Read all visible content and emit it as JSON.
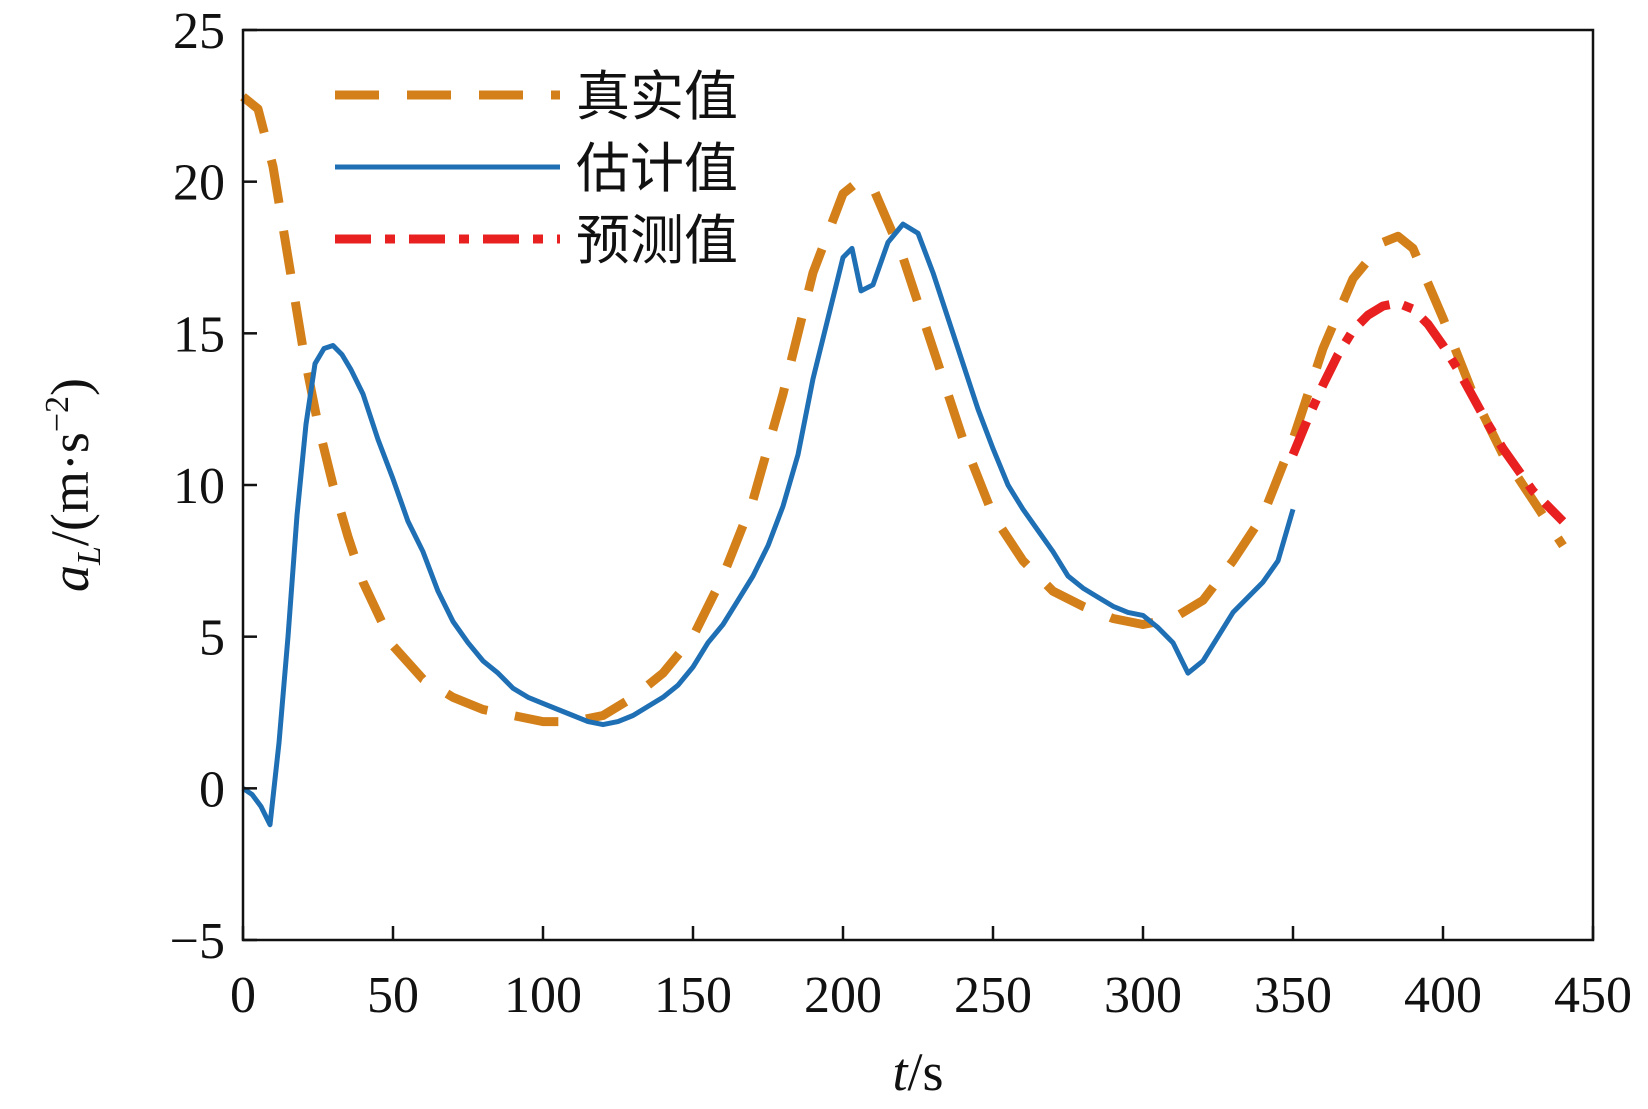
{
  "chart_data": {
    "type": "line",
    "xlabel": {
      "var": "t",
      "unit": "/s"
    },
    "ylabel": {
      "var": "a",
      "sub": "L",
      "unit_prefix": "/(m·s",
      "unit_sup": "−2",
      "unit_suffix": ")"
    },
    "xlim": [
      0,
      450
    ],
    "ylim": [
      -5,
      25
    ],
    "xticks": [
      0,
      50,
      100,
      150,
      200,
      250,
      300,
      350,
      400,
      450
    ],
    "yticks": [
      -5,
      0,
      5,
      10,
      15,
      20,
      25
    ],
    "xtick_labels": [
      "0",
      "50",
      "100",
      "150",
      "200",
      "250",
      "300",
      "350",
      "400",
      "450"
    ],
    "ytick_labels": [
      "−5",
      "0",
      "5",
      "10",
      "15",
      "20",
      "25"
    ],
    "grid": false,
    "legend_position": "top-left",
    "series": [
      {
        "name": "真实值",
        "color": "#D4801A",
        "style": "dashed",
        "x": [
          0,
          5,
          10,
          15,
          20,
          25,
          30,
          35,
          40,
          50,
          60,
          70,
          80,
          90,
          100,
          110,
          120,
          130,
          140,
          150,
          160,
          170,
          180,
          190,
          200,
          205,
          210,
          220,
          230,
          240,
          250,
          260,
          270,
          280,
          290,
          300,
          310,
          320,
          330,
          340,
          350,
          360,
          370,
          380,
          385,
          390,
          400,
          410,
          420,
          430,
          440
        ],
        "values": [
          22.8,
          22.4,
          20.5,
          17.5,
          14.5,
          12.0,
          10.0,
          8.3,
          6.8,
          4.7,
          3.6,
          3.0,
          2.6,
          2.4,
          2.2,
          2.2,
          2.4,
          3.0,
          3.8,
          5.0,
          7.0,
          9.5,
          13.0,
          17.0,
          19.6,
          20.0,
          19.8,
          17.5,
          14.5,
          11.5,
          9.0,
          7.5,
          6.5,
          6.0,
          5.6,
          5.4,
          5.6,
          6.2,
          7.5,
          9.0,
          11.5,
          14.5,
          16.8,
          18.0,
          18.2,
          17.8,
          15.5,
          13.0,
          11.0,
          9.5,
          8.0
        ]
      },
      {
        "name": "估计值",
        "color": "#1F6FB5",
        "style": "solid",
        "x": [
          0,
          3,
          6,
          9,
          12,
          15,
          18,
          21,
          24,
          27,
          30,
          33,
          36,
          40,
          45,
          50,
          55,
          60,
          65,
          70,
          75,
          80,
          85,
          90,
          95,
          100,
          105,
          110,
          115,
          120,
          125,
          130,
          135,
          140,
          145,
          150,
          155,
          160,
          165,
          170,
          175,
          180,
          185,
          190,
          195,
          200,
          203,
          206,
          210,
          215,
          220,
          225,
          230,
          235,
          240,
          245,
          250,
          255,
          260,
          265,
          270,
          275,
          280,
          285,
          290,
          295,
          300,
          305,
          310,
          315,
          320,
          325,
          330,
          335,
          340,
          345,
          350
        ],
        "values": [
          0.0,
          -0.2,
          -0.6,
          -1.2,
          1.5,
          5.0,
          9.0,
          12.0,
          14.0,
          14.5,
          14.6,
          14.3,
          13.8,
          13.0,
          11.5,
          10.2,
          8.8,
          7.8,
          6.5,
          5.5,
          4.8,
          4.2,
          3.8,
          3.3,
          3.0,
          2.8,
          2.6,
          2.4,
          2.2,
          2.1,
          2.2,
          2.4,
          2.7,
          3.0,
          3.4,
          4.0,
          4.8,
          5.4,
          6.2,
          7.0,
          8.0,
          9.3,
          11.0,
          13.5,
          15.5,
          17.5,
          17.8,
          16.4,
          16.6,
          18.0,
          18.6,
          18.3,
          17.0,
          15.5,
          14.0,
          12.5,
          11.2,
          10.0,
          9.2,
          8.5,
          7.8,
          7.0,
          6.6,
          6.3,
          6.0,
          5.8,
          5.7,
          5.3,
          4.8,
          3.8,
          4.2,
          5.0,
          5.8,
          6.3,
          6.8,
          7.5,
          9.2
        ]
      },
      {
        "name": "预测值",
        "color": "#E82020",
        "style": "dashdot",
        "x": [
          350,
          355,
          360,
          365,
          370,
          375,
          380,
          385,
          390,
          395,
          400,
          405,
          410,
          415,
          420,
          425,
          430,
          435,
          440
        ],
        "values": [
          11.0,
          12.2,
          13.3,
          14.3,
          15.1,
          15.6,
          15.9,
          16.0,
          15.8,
          15.3,
          14.6,
          13.8,
          12.9,
          12.0,
          11.2,
          10.5,
          9.8,
          9.3,
          8.8
        ]
      }
    ]
  }
}
